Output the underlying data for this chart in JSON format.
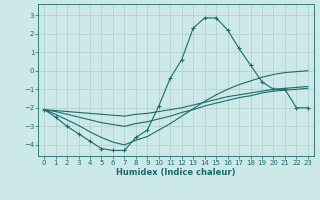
{
  "xlabel": "Humidex (Indice chaleur)",
  "ylabel": "",
  "background_color": "#cde8e8",
  "grid_color": "#aecece",
  "line_color": "#1a6b6b",
  "xlim": [
    -0.5,
    23.5
  ],
  "ylim": [
    -4.6,
    3.6
  ],
  "yticks": [
    -4,
    -3,
    -2,
    -1,
    0,
    1,
    2,
    3
  ],
  "xticks": [
    0,
    1,
    2,
    3,
    4,
    5,
    6,
    7,
    8,
    9,
    10,
    11,
    12,
    13,
    14,
    15,
    16,
    17,
    18,
    19,
    20,
    21,
    22,
    23
  ],
  "series": [
    {
      "x": [
        0,
        1,
        2,
        3,
        4,
        5,
        6,
        7,
        8,
        9,
        10,
        11,
        12,
        13,
        14,
        15,
        16,
        17,
        18,
        19,
        20,
        21,
        22,
        23
      ],
      "y": [
        -2.1,
        -2.5,
        -3.0,
        -3.4,
        -3.8,
        -4.2,
        -4.3,
        -4.3,
        -3.6,
        -3.2,
        -1.9,
        -0.4,
        0.6,
        2.3,
        2.85,
        2.85,
        2.2,
        1.2,
        0.3,
        -0.6,
        -1.0,
        -1.0,
        -2.0,
        -2.0
      ],
      "marker": "+"
    },
    {
      "x": [
        0,
        1,
        2,
        3,
        4,
        5,
        6,
        7,
        8,
        9,
        10,
        11,
        12,
        13,
        14,
        15,
        16,
        17,
        18,
        19,
        20,
        21,
        22,
        23
      ],
      "y": [
        -2.1,
        -2.15,
        -2.2,
        -2.25,
        -2.3,
        -2.35,
        -2.4,
        -2.45,
        -2.35,
        -2.3,
        -2.2,
        -2.1,
        -2.0,
        -1.85,
        -1.7,
        -1.55,
        -1.4,
        -1.3,
        -1.2,
        -1.1,
        -1.0,
        -0.95,
        -0.9,
        -0.85
      ],
      "marker": null
    },
    {
      "x": [
        0,
        1,
        2,
        3,
        4,
        5,
        6,
        7,
        8,
        9,
        10,
        11,
        12,
        13,
        14,
        15,
        16,
        17,
        18,
        19,
        20,
        21,
        22,
        23
      ],
      "y": [
        -2.1,
        -2.2,
        -2.35,
        -2.5,
        -2.65,
        -2.8,
        -2.9,
        -3.0,
        -2.85,
        -2.75,
        -2.6,
        -2.45,
        -2.25,
        -2.1,
        -1.9,
        -1.75,
        -1.6,
        -1.45,
        -1.35,
        -1.2,
        -1.1,
        -1.05,
        -1.0,
        -0.95
      ],
      "marker": null
    },
    {
      "x": [
        0,
        1,
        2,
        3,
        4,
        5,
        6,
        7,
        8,
        9,
        10,
        11,
        12,
        13,
        14,
        15,
        16,
        17,
        18,
        19,
        20,
        21,
        22,
        23
      ],
      "y": [
        -2.1,
        -2.35,
        -2.65,
        -2.95,
        -3.3,
        -3.6,
        -3.85,
        -4.0,
        -3.75,
        -3.55,
        -3.2,
        -2.85,
        -2.45,
        -2.05,
        -1.65,
        -1.3,
        -1.0,
        -0.75,
        -0.55,
        -0.35,
        -0.2,
        -0.1,
        -0.05,
        0.0
      ],
      "marker": null
    }
  ]
}
